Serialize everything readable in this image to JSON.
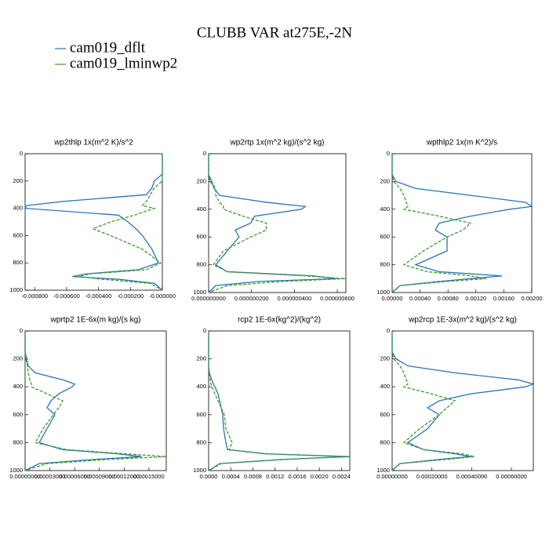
{
  "title": "CLUBB VAR at275E,-2N",
  "legend": [
    {
      "name": "cam019_dflt",
      "color": "#2a74b4"
    },
    {
      "name": "cam019_lminwp2",
      "color": "#3c9a2c"
    }
  ],
  "levels": [
    0,
    150,
    200,
    250,
    300,
    350,
    380,
    400,
    450,
    500,
    550,
    600,
    700,
    800,
    850,
    880,
    900,
    920,
    950,
    1000
  ],
  "chart_data": [
    {
      "type": "line",
      "title": "wp2thlp   1x(m^2 K)/s^2",
      "xlim": [
        -0.00086,
        0
      ],
      "ylim": [
        1000,
        0
      ],
      "yticks": [
        0,
        200,
        400,
        600,
        800,
        1000
      ],
      "xticks": [
        {
          "value": -0.0008,
          "label": "-0.000800"
        },
        {
          "value": -0.0006,
          "label": "-0.000600"
        },
        {
          "value": -0.0004,
          "label": "-0.000400"
        },
        {
          "value": -0.0002,
          "label": "-0.000200"
        },
        {
          "value": 0,
          "label": "-0.000000"
        }
      ],
      "series": [
        {
          "values": [
            0,
            0,
            -5e-05,
            -6.5e-05,
            -0.0001,
            -0.000625,
            -0.00085,
            -0.00086,
            -0.000275,
            -0.000215,
            -0.000165,
            -0.000125,
            -6.5e-05,
            -2.5e-05,
            -0.00015,
            -0.000475,
            -0.000565,
            -0.000275,
            -5e-05,
            0
          ]
        },
        {
          "values": [
            0,
            0,
            0,
            -5e-05,
            -7.5e-05,
            -0.0001,
            -0.000125,
            -5e-05,
            -0.000175,
            -0.000325,
            -0.000435,
            -0.000325,
            -0.000125,
            -1e-05,
            -0.0001,
            -0.00045,
            -0.000525,
            -0.000375,
            -7.5e-05,
            0
          ]
        }
      ]
    },
    {
      "type": "line",
      "title": "wp2rtp   1x(m^2 kg)/(s^2 kg)",
      "xlim": [
        0,
        6.4e-07
      ],
      "ylim": [
        1000,
        0
      ],
      "yticks": [
        0,
        200,
        400,
        600,
        800,
        1000
      ],
      "xticks": [
        {
          "value": 0,
          "label": "0.000000000"
        },
        {
          "value": 2e-07,
          "label": "0.000000200"
        },
        {
          "value": 4e-07,
          "label": "0.000000400"
        },
        {
          "value": 6e-07,
          "label": "0.000000600"
        }
      ],
      "series": [
        {
          "values": [
            0,
            0,
            1.45e-08,
            2.55e-08,
            5.1e-08,
            2.69e-07,
            4.51e-07,
            4.33e-07,
            2.15e-07,
            1.96e-07,
            1.24e-07,
            1.42e-07,
            8.7e-08,
            3.3e-08,
            8.7e-08,
            4.87e-07,
            5.96e-07,
            2.33e-07,
            3.3e-08,
            0
          ]
        },
        {
          "values": [
            0,
            0,
            7e-09,
            3.3e-08,
            3.3e-08,
            5.1e-08,
            6.9e-08,
            6.9e-08,
            1.6e-07,
            2.69e-07,
            2.69e-07,
            1.96e-07,
            6.9e-08,
            2.2e-08,
            8.7e-08,
            4.51e-07,
            6.36e-07,
            3.42e-07,
            8.7e-08,
            0
          ]
        }
      ]
    },
    {
      "type": "line",
      "title": "wpthlp2   1x(m K^2)/s",
      "xlim": [
        0,
        0.002
      ],
      "ylim": [
        1000,
        0
      ],
      "yticks": [
        0,
        200,
        400,
        600,
        800,
        1000
      ],
      "xticks": [
        {
          "value": 0,
          "label": "0.00000"
        },
        {
          "value": 0.0004,
          "label": "0.00040"
        },
        {
          "value": 0.0008,
          "label": "0.00080"
        },
        {
          "value": 0.0012,
          "label": "0.00120"
        },
        {
          "value": 0.0016,
          "label": "0.00160"
        },
        {
          "value": 0.002,
          "label": "0.00200"
        }
      ],
      "series": [
        {
          "values": [
            0,
            0,
            5.6e-05,
            0.000337,
            0.001124,
            0.00191,
            0.002,
            0.001685,
            0.001124,
            0.000674,
            0.000618,
            0.000787,
            0.000787,
            0.000337,
            0.000674,
            0.001573,
            0.001124,
            0.000674,
            0.000112,
            0
          ]
        },
        {
          "values": [
            0,
            0,
            2.2e-05,
            0.000112,
            0.000169,
            0.000202,
            0.000225,
            0.000169,
            0.000674,
            0.001124,
            0.001011,
            0.000787,
            0.000449,
            0.000169,
            0.000506,
            0.001124,
            0.001348,
            0.000787,
            0.000112,
            0
          ]
        }
      ]
    },
    {
      "type": "line",
      "title": "wprtp2   1E-6x(m kg)/(s kg)",
      "xlim": [
        0,
        0.000171
      ],
      "ylim": [
        1000,
        0
      ],
      "yticks": [
        0,
        200,
        400,
        600,
        800,
        1000
      ],
      "xticks": [
        {
          "value": 0,
          "label": "0.00000000"
        },
        {
          "value": 3e-05,
          "label": "0.00003000"
        },
        {
          "value": 6e-05,
          "label": "0.00006000"
        },
        {
          "value": 9e-05,
          "label": "0.00009000"
        },
        {
          "value": 0.00012,
          "label": "0.00012000"
        },
        {
          "value": 0.00015,
          "label": "0.00015000"
        }
      ],
      "series": [
        {
          "values": [
            0,
            0,
            1.9e-06,
            3.8e-06,
            1.23e-05,
            4.56e-05,
            6e-05,
            5.7e-05,
            4.08e-05,
            3.13e-05,
            2.66e-05,
            3.61e-05,
            2.66e-05,
            1.71e-05,
            4.56e-05,
            0.000112,
            0.000141,
            8.35e-05,
            1.71e-05,
            0
          ]
        },
        {
          "values": [
            0,
            0,
            9e-07,
            2.8e-06,
            3.8e-06,
            5.7e-06,
            7.6e-06,
            7.6e-06,
            2.66e-05,
            4.56e-05,
            4.08e-05,
            3.42e-05,
            2.18e-05,
            1.23e-05,
            5.03e-05,
            0.0001215,
            0.0001709,
            0.0001025,
            2.66e-05,
            0
          ]
        }
      ]
    },
    {
      "type": "line",
      "title": "rcp2   1E-6x(kg^2)/(kg^2)",
      "xlim": [
        0,
        0.00255
      ],
      "ylim": [
        1000,
        0
      ],
      "yticks": [
        0,
        200,
        400,
        600,
        800,
        1000
      ],
      "xticks": [
        {
          "value": 0,
          "label": "0.0000"
        },
        {
          "value": 0.0004,
          "label": "0.0004"
        },
        {
          "value": 0.0008,
          "label": "0.0008"
        },
        {
          "value": 0.0012,
          "label": "0.0012"
        },
        {
          "value": 0.0016,
          "label": "0.0016"
        },
        {
          "value": 0.002,
          "label": "0.0020"
        },
        {
          "value": 0.0024,
          "label": "0.0024"
        }
      ],
      "series": [
        {
          "values": [
            0,
            0,
            0,
            0,
            1.4e-05,
            5.7e-05,
            8.5e-05,
            0.000113,
            0.00017,
            0.000199,
            0.000227,
            0.000255,
            0.00027,
            0.000312,
            0.00034,
            0.00105,
            0.00255,
            0.00133,
            0.000199,
            0
          ]
        },
        {
          "values": [
            0,
            0,
            0,
            0,
            1.4e-05,
            2.8e-05,
            4.3e-05,
            5.7e-05,
            0.000113,
            0.00017,
            0.000227,
            0.000284,
            0.000312,
            0.000426,
            0.000369,
            0.001,
            0.0025,
            0.0014,
            0.000227,
            0
          ]
        }
      ]
    },
    {
      "type": "line",
      "title": "wp2rcp   1E-3x(m^2 kg)/(s^2 kg)",
      "xlim": [
        0,
        0.00071
      ],
      "ylim": [
        1000,
        0
      ],
      "yticks": [
        0,
        200,
        400,
        600,
        800,
        1000
      ],
      "xticks": [
        {
          "value": 0,
          "label": "0.00000000"
        },
        {
          "value": 0.0002,
          "label": "0.00020000"
        },
        {
          "value": 0.0004,
          "label": "0.00040000"
        },
        {
          "value": 0.0006,
          "label": "0.00060000"
        }
      ],
      "series": [
        {
          "values": [
            0,
            0,
            2e-05,
            7.9e-05,
            0.000316,
            0.000632,
            0.00071,
            0.000671,
            0.000395,
            0.000237,
            0.000178,
            0.000237,
            0.000178,
            7.9e-05,
            0.000158,
            0.000316,
            0.000395,
            0.000237,
            3.9e-05,
            0
          ]
        },
        {
          "values": [
            0,
            0,
            8e-06,
            3.9e-05,
            5.9e-05,
            7.1e-05,
            7.9e-05,
            5.9e-05,
            0.000197,
            0.000316,
            0.000276,
            0.000237,
            0.000138,
            5.9e-05,
            0.000158,
            0.000355,
            0.000414,
            0.000276,
            3.9e-05,
            0
          ]
        }
      ]
    }
  ]
}
